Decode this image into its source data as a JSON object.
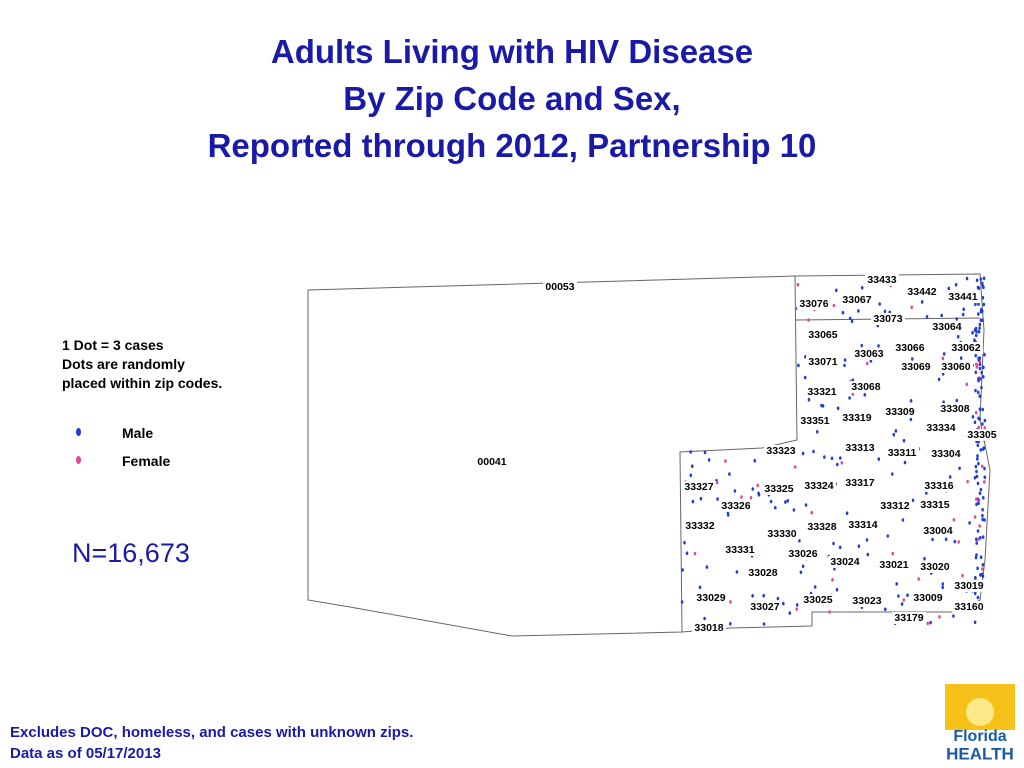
{
  "header": {
    "title": [
      "Adults Living with HIV Disease",
      "By Zip Code and Sex,",
      "Reported through 2012, Partnership 10"
    ]
  },
  "legend": {
    "note": [
      "1 Dot = 3 cases",
      "Dots are randomly",
      "placed within zip codes."
    ],
    "items": [
      {
        "label": "Male",
        "color": "#1f3fd6"
      },
      {
        "label": "Female",
        "color": "#e8479a"
      }
    ]
  },
  "total": "N=16,673",
  "footnotes": [
    "Excludes DOC, homeless, and cases with unknown zips.",
    "Data as of 05/17/2013"
  ],
  "map": {
    "zip_labels": [
      "00053",
      "00041",
      "33433",
      "33442",
      "33441",
      "33076",
      "33067",
      "33073",
      "33064",
      "33065",
      "33066",
      "33062",
      "33063",
      "33071",
      "33069",
      "33060",
      "33068",
      "33321",
      "33308",
      "33309",
      "33319",
      "33351",
      "33334",
      "33305",
      "33313",
      "33323",
      "33311",
      "33304",
      "33317",
      "33327",
      "33324",
      "33325",
      "33316",
      "33326",
      "33312",
      "33315",
      "33314",
      "33332",
      "33328",
      "33004",
      "33330",
      "33331",
      "33026",
      "33024",
      "33021",
      "33020",
      "33028",
      "33019",
      "33029",
      "33009",
      "33025",
      "33023",
      "33027",
      "33160",
      "33179",
      "33018"
    ]
  },
  "logo": {
    "line1": "Florida",
    "line2": "HEALTH"
  }
}
